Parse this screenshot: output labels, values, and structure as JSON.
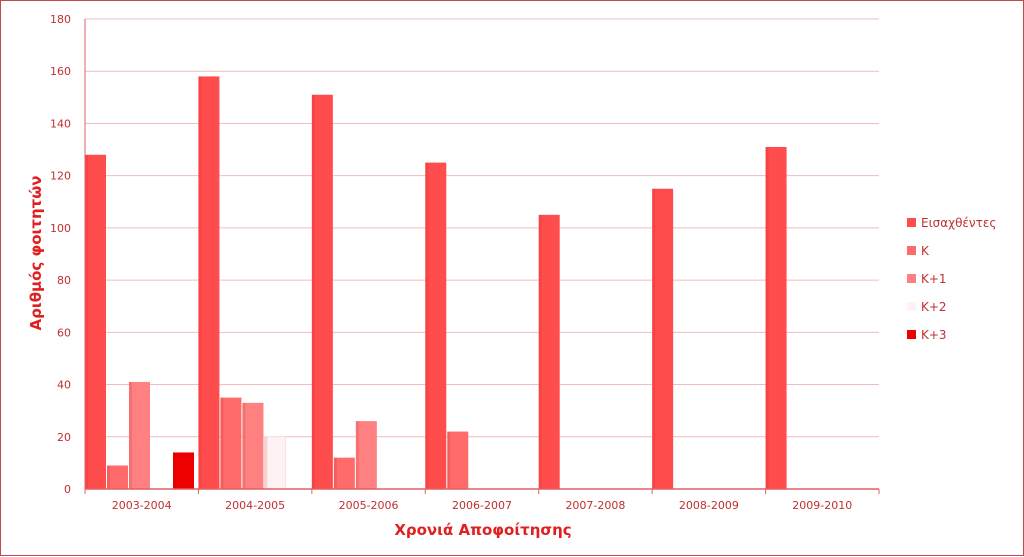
{
  "chart_data": {
    "type": "bar",
    "title": "",
    "xlabel": "Χρονιά Αποφοίτησης",
    "ylabel": "Αριθμός φοιτητών",
    "ylim": [
      0,
      180
    ],
    "yticks": [
      0,
      20,
      40,
      60,
      80,
      100,
      120,
      140,
      160,
      180
    ],
    "grid": true,
    "legend_position": "right",
    "categories": [
      "2003-2004",
      "2004-2005",
      "2005-2006",
      "2006-2007",
      "2007-2008",
      "2008-2009",
      "2009-2010"
    ],
    "series": [
      {
        "name": "Εισαχθέντες",
        "color": "#ff4d4d",
        "values": [
          128,
          158,
          151,
          125,
          105,
          115,
          131
        ]
      },
      {
        "name": "Κ",
        "color": "#ff6b6b",
        "values": [
          9,
          35,
          12,
          22,
          0,
          0,
          0
        ]
      },
      {
        "name": "Κ+1",
        "color": "#ff8080",
        "values": [
          41,
          33,
          26,
          0,
          0,
          0,
          0
        ]
      },
      {
        "name": "Κ+2",
        "color": "#fff2f2",
        "values": [
          0,
          20,
          0,
          0,
          0,
          0,
          0
        ]
      },
      {
        "name": "Κ+3",
        "color": "#ee0000",
        "values": [
          14,
          0,
          0,
          0,
          0,
          0,
          0
        ]
      }
    ]
  },
  "colors": {
    "gridline": "#f4bcbc",
    "axis": "#e06060",
    "frame_border": "#c24a4a"
  }
}
